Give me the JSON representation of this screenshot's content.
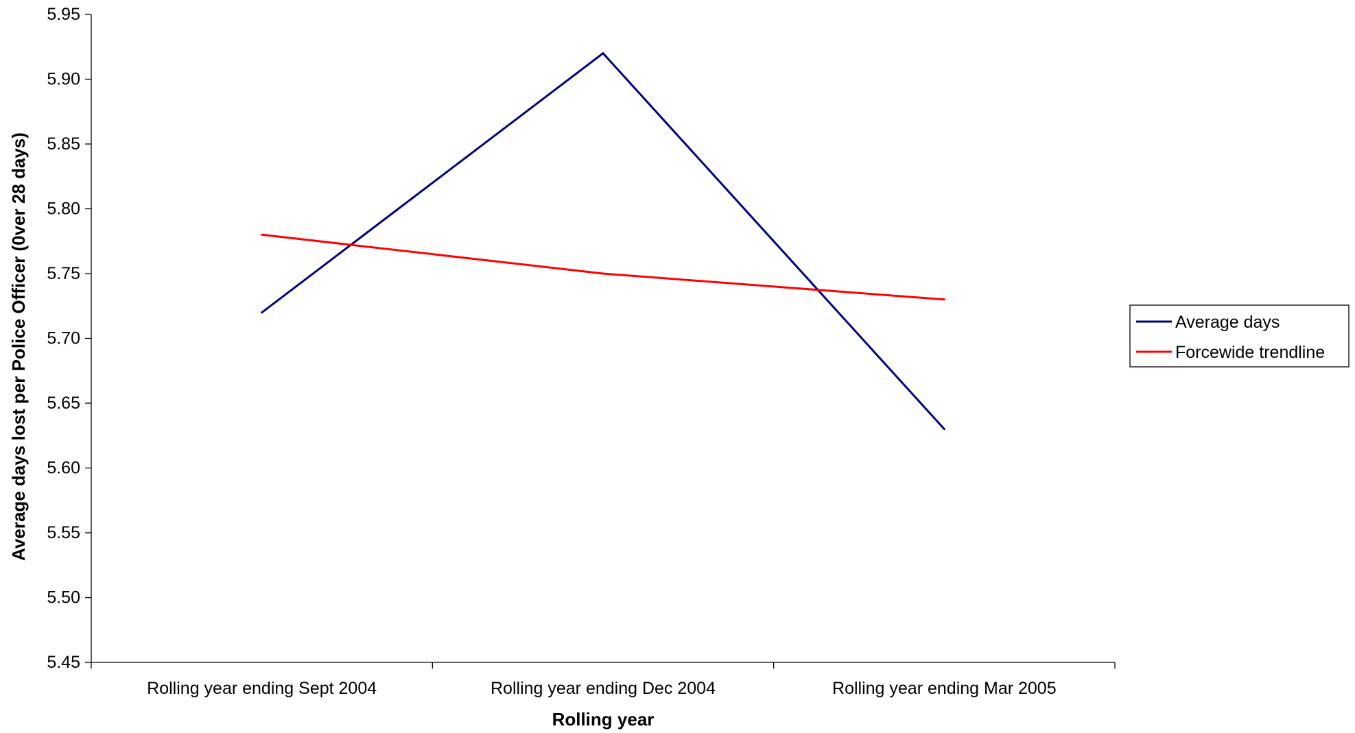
{
  "chart_data": {
    "type": "line",
    "categories": [
      "Rolling year ending Sept 2004",
      "Rolling year ending Dec 2004",
      "Rolling year ending Mar 2005"
    ],
    "series": [
      {
        "name": "Average days",
        "values": [
          5.72,
          5.92,
          5.63
        ],
        "color": "#000080"
      },
      {
        "name": "Forcewide trendline",
        "values": [
          5.78,
          5.75,
          5.73
        ],
        "color": "#ff0000"
      }
    ],
    "xlabel": "Rolling year",
    "ylabel": "Average days lost per Police Officer (0ver 28 days)",
    "ylim": [
      5.45,
      5.95
    ],
    "yticks": [
      "5.45",
      "5.50",
      "5.55",
      "5.60",
      "5.65",
      "5.70",
      "5.75",
      "5.80",
      "5.85",
      "5.90",
      "5.95"
    ],
    "grid": false,
    "legend_position": "right"
  }
}
